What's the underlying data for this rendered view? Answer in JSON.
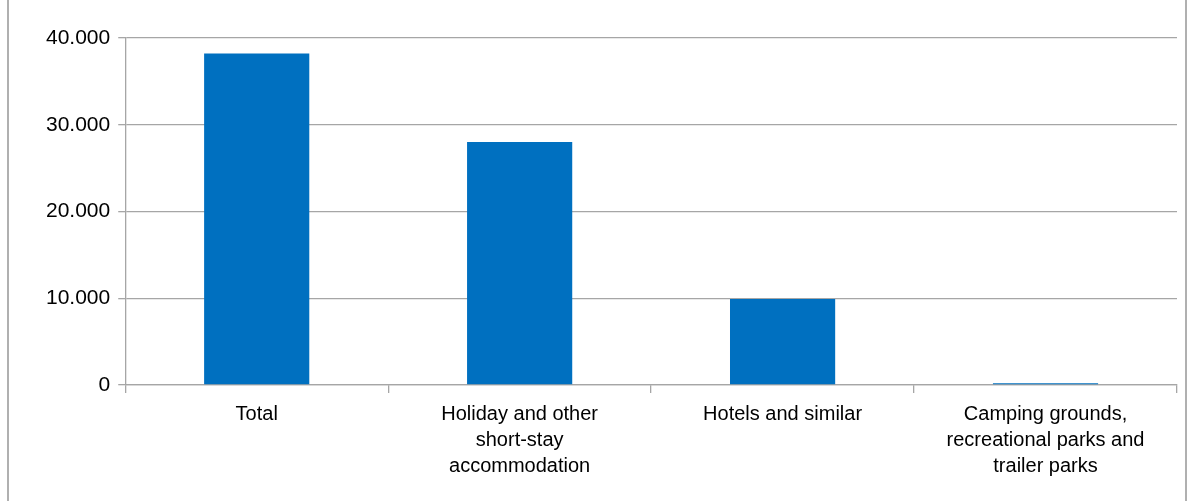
{
  "chart_data": {
    "type": "bar",
    "categories": [
      "Total",
      "Holiday and other short-stay accommodation",
      "Hotels and similar",
      "Camping grounds, recreational parks and trailer parks"
    ],
    "values": [
      38200,
      28000,
      9900,
      200
    ],
    "color": "#0070c0",
    "ylim": [
      0,
      40000
    ],
    "yticks": [
      0,
      {
        "value": 10000,
        "label": "10.000"
      },
      {
        "value": 20000,
        "label": "20.000"
      },
      {
        "value": 30000,
        "label": "30.000"
      },
      {
        "value": 40000,
        "label": "40.000"
      }
    ],
    "grid": "y"
  }
}
